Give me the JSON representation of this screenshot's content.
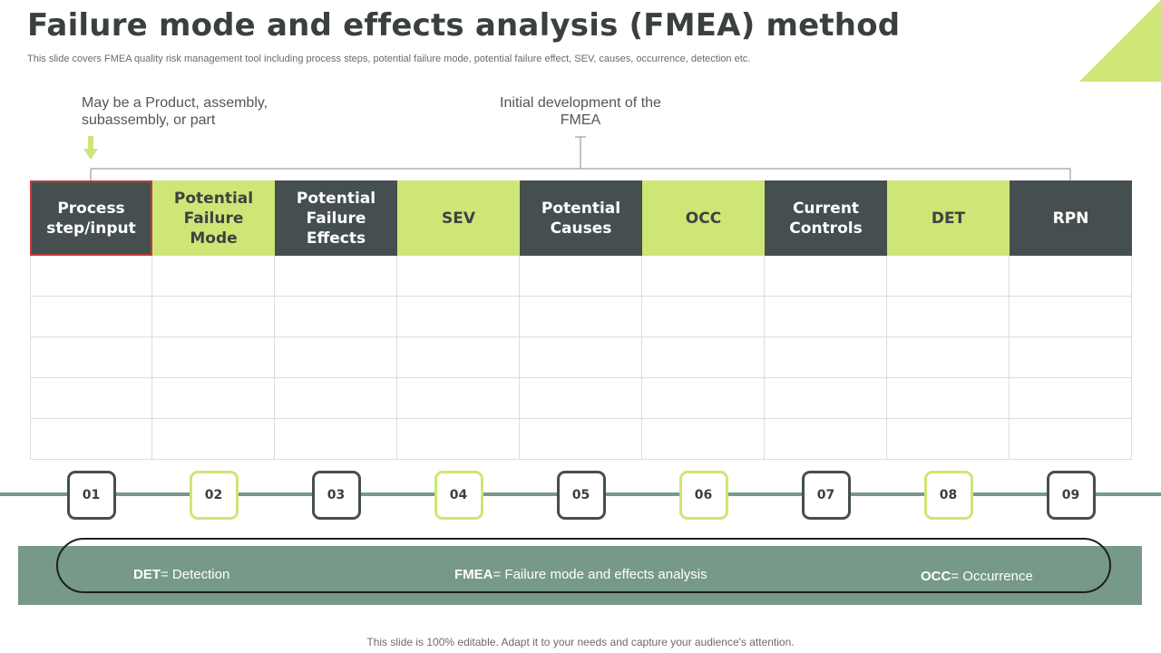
{
  "slide": {
    "title": "Failure mode and  effects analysis (FMEA) method",
    "subtitle": "This slide covers FMEA  quality risk management tool including process steps, potential failure mode, potential failure effect, SEV,  causes, occurrence, detection etc.",
    "footer": "This slide is 100% editable. Adapt it to your needs and capture your audience's attention."
  },
  "colors": {
    "dark": "#464f4f",
    "green": "#cde676",
    "teal": "#76998a"
  },
  "annotations": {
    "left": "May be a Product, assembly, subassembly,  or part",
    "center": "Initial  development of the FMEA"
  },
  "columns": [
    {
      "label": "Process step/input",
      "style": "dark"
    },
    {
      "label": "Potential Failure Mode",
      "style": "green"
    },
    {
      "label": "Potential Failure Effects",
      "style": "dark"
    },
    {
      "label": "SEV",
      "style": "green"
    },
    {
      "label": "Potential Causes",
      "style": "dark"
    },
    {
      "label": "OCC",
      "style": "green"
    },
    {
      "label": "Current Controls",
      "style": "dark"
    },
    {
      "label": "DET",
      "style": "green"
    },
    {
      "label": "RPN",
      "style": "dark"
    }
  ],
  "steps": [
    "01",
    "02",
    "03",
    "04",
    "05",
    "06",
    "07",
    "08",
    "09"
  ],
  "legend": {
    "det": {
      "key": "DET",
      "text": "= Detection"
    },
    "fmea": {
      "key": "FMEA",
      "text": "= Failure mode and effects analysis"
    },
    "occ": {
      "key": "OCC",
      "text": "= Occurrence"
    }
  }
}
